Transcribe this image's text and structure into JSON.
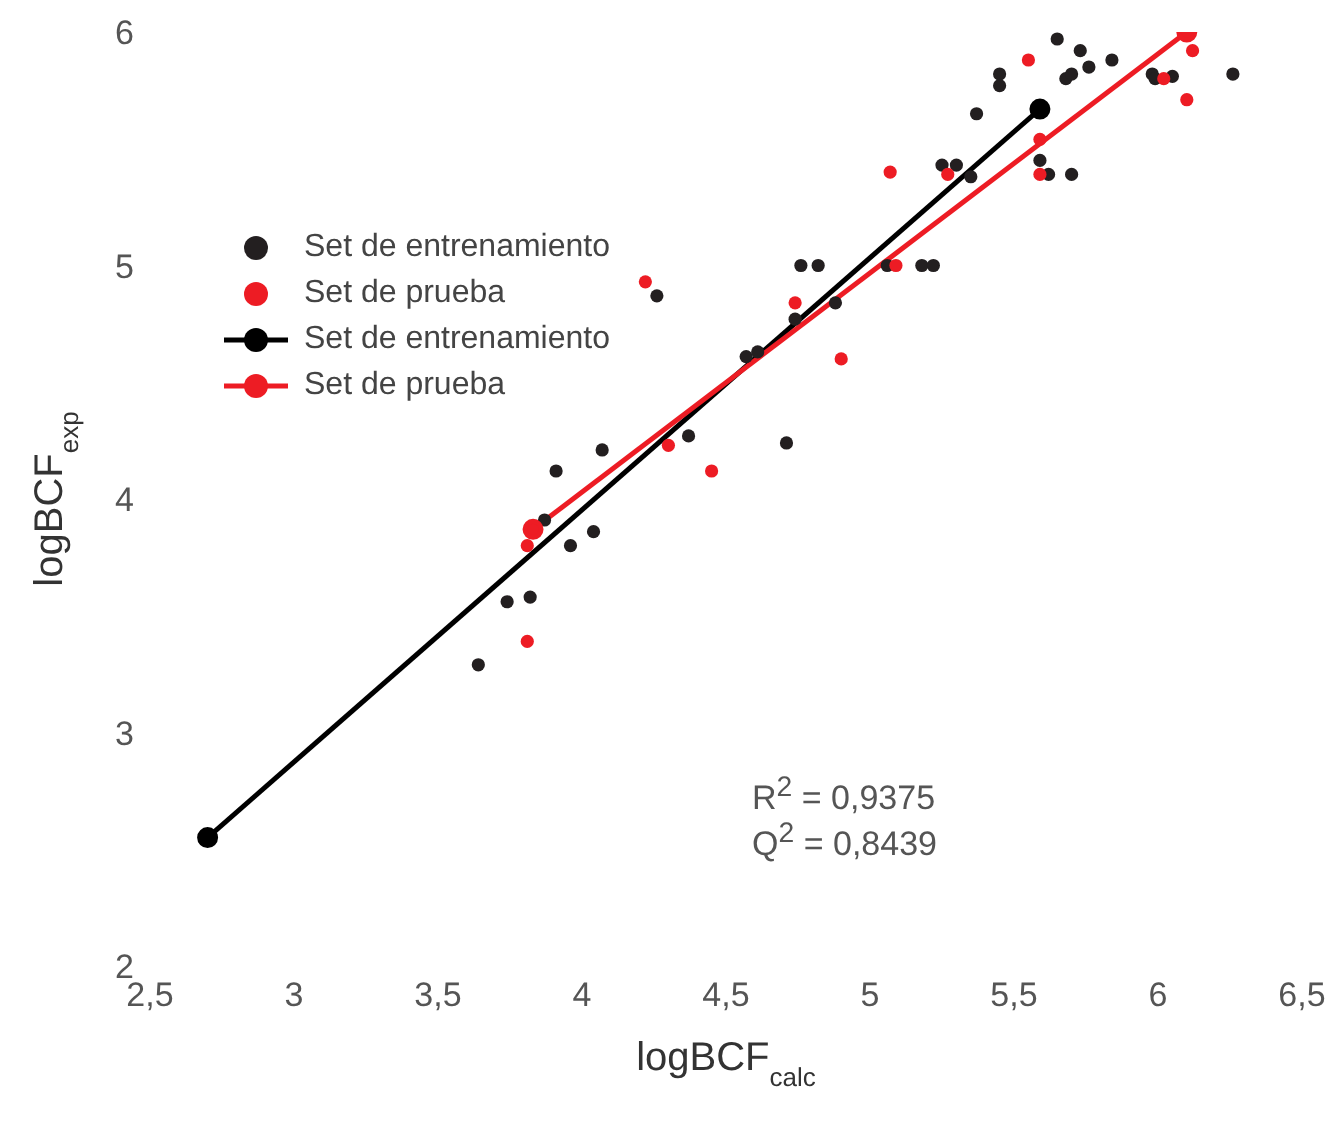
{
  "chart_data": {
    "type": "scatter",
    "xlabel": "logBCF$_{calc}$",
    "ylabel": "logBCF$_{exp}$",
    "xlim": [
      2.5,
      6.5
    ],
    "ylim": [
      2,
      6
    ],
    "xticks": [
      {
        "value": 2.5,
        "label": "2,5"
      },
      3,
      {
        "value": 3.5,
        "label": "3,5"
      },
      4,
      {
        "value": 4.5,
        "label": "4,5"
      },
      5,
      {
        "value": 5.5,
        "label": "5,5"
      },
      6,
      {
        "value": 6.5,
        "label": "6,5"
      }
    ],
    "yticks": [
      2,
      3,
      4,
      5,
      6
    ],
    "legend": "top left",
    "marker": "circle",
    "annotations": [
      "R$^{2}$ = 0,9375",
      "Q$^{2}$ = 0,8439"
    ],
    "series": [
      {
        "name": "Set de entrenamiento",
        "color": "#231f20",
        "x": [
          3.64,
          3.74,
          3.82,
          3.87,
          3.91,
          3.96,
          4.04,
          4.07,
          4.26,
          4.37,
          4.57,
          4.61,
          4.71,
          4.74,
          4.76,
          4.82,
          4.88,
          5.06,
          5.18,
          5.22,
          5.25,
          5.3,
          5.35,
          5.37,
          5.45,
          5.45,
          5.59,
          5.62,
          5.65,
          5.68,
          5.7,
          5.7,
          5.73,
          5.76,
          5.84,
          5.98,
          5.99,
          6.05,
          6.26
        ],
        "values": [
          3.29,
          3.56,
          3.58,
          3.91,
          4.12,
          3.8,
          3.86,
          4.21,
          4.87,
          4.27,
          4.61,
          4.63,
          4.24,
          4.77,
          5.0,
          5.0,
          4.84,
          5.0,
          5.0,
          5.0,
          5.43,
          5.43,
          5.38,
          5.65,
          5.82,
          5.77,
          5.45,
          5.39,
          5.97,
          5.8,
          5.82,
          5.39,
          5.92,
          5.85,
          5.88,
          5.82,
          5.8,
          5.81,
          5.82
        ]
      },
      {
        "name": "Set de prueba",
        "color": "#ed1c24",
        "x": [
          3.81,
          3.81,
          4.22,
          4.3,
          4.45,
          4.74,
          4.9,
          5.07,
          5.09,
          5.27,
          5.55,
          5.59,
          5.59,
          6.02,
          6.1,
          6.12
        ],
        "values": [
          3.39,
          3.8,
          4.93,
          4.23,
          4.12,
          4.84,
          4.6,
          5.4,
          5.0,
          5.39,
          5.88,
          5.54,
          5.39,
          5.8,
          5.71,
          5.92
        ]
      },
      {
        "name": "Set de entrenamiento",
        "type": "line",
        "color": "#000000",
        "x": [
          2.7,
          5.59
        ],
        "values": [
          2.55,
          5.67
        ]
      },
      {
        "name": "Set de prueba",
        "type": "line",
        "color": "#ed1c24",
        "x": [
          3.83,
          6.1
        ],
        "values": [
          3.87,
          6.0
        ]
      }
    ]
  }
}
